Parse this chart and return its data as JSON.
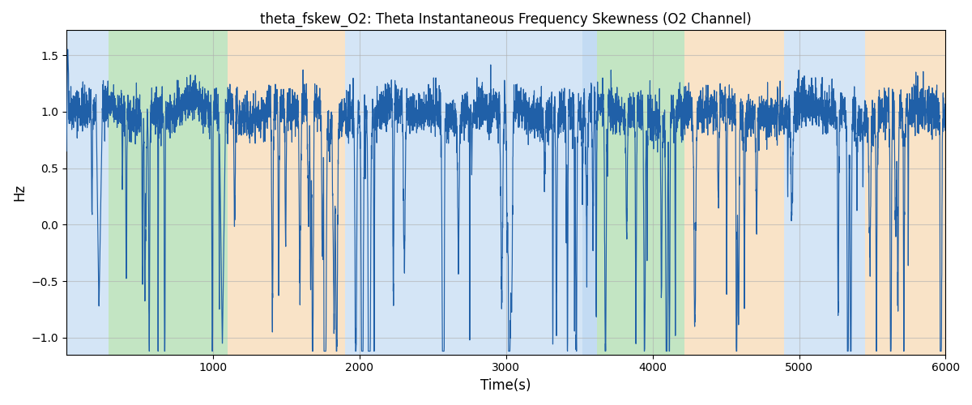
{
  "title": "theta_fskew_O2: Theta Instantaneous Frequency Skewness (O2 Channel)",
  "xlabel": "Time(s)",
  "ylabel": "Hz",
  "xlim": [
    0,
    6000
  ],
  "ylim": [
    -1.15,
    1.72
  ],
  "line_color": "#2060a8",
  "line_width": 0.85,
  "background_regions": [
    {
      "start": 0,
      "end": 290,
      "color": "#aaccee",
      "alpha": 0.5
    },
    {
      "start": 290,
      "end": 1100,
      "color": "#88cc88",
      "alpha": 0.5
    },
    {
      "start": 1100,
      "end": 1900,
      "color": "#f5c890",
      "alpha": 0.5
    },
    {
      "start": 1900,
      "end": 3520,
      "color": "#aaccee",
      "alpha": 0.5
    },
    {
      "start": 3520,
      "end": 3620,
      "color": "#aaccee",
      "alpha": 0.7
    },
    {
      "start": 3620,
      "end": 4220,
      "color": "#88cc88",
      "alpha": 0.5
    },
    {
      "start": 4220,
      "end": 4900,
      "color": "#f5c890",
      "alpha": 0.5
    },
    {
      "start": 4900,
      "end": 5450,
      "color": "#aaccee",
      "alpha": 0.5
    },
    {
      "start": 5450,
      "end": 6000,
      "color": "#f5c890",
      "alpha": 0.5
    }
  ],
  "yticks": [
    -1.0,
    -0.5,
    0.0,
    0.5,
    1.0,
    1.5
  ],
  "xticks": [
    1000,
    2000,
    3000,
    4000,
    5000,
    6000
  ],
  "grid_color": "#b0b0b0",
  "grid_alpha": 0.6,
  "title_fontsize": 12,
  "noise_seed": 42,
  "spike_seed": 99,
  "n_points": 6000,
  "base_value": 1.0,
  "noise_amplitude": 0.1,
  "n_spikes": 100
}
